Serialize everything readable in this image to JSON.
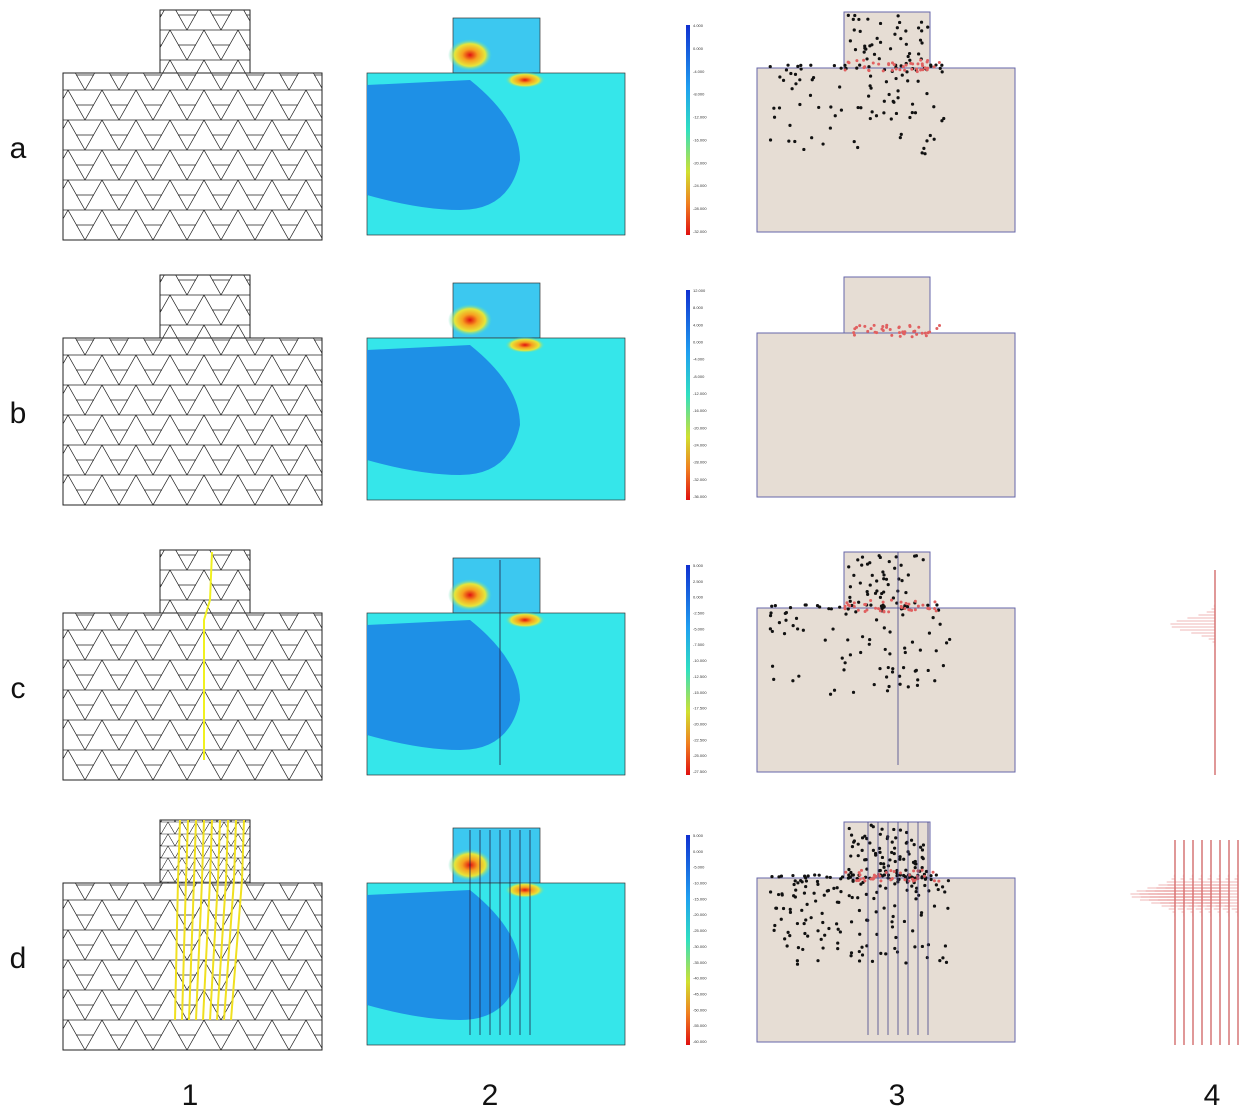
{
  "rows": [
    {
      "label": "a",
      "colorbar": [
        "4.000",
        "0.000",
        "-4.000",
        "-8.000",
        "-12.000",
        "-16.000",
        "-20.000",
        "-24.000",
        "-28.000",
        "-32.000"
      ]
    },
    {
      "label": "b",
      "colorbar": [
        "12.000",
        "8.000",
        "4.000",
        "0.000",
        "-4.000",
        "-8.000",
        "-12.000",
        "-16.000",
        "-20.000",
        "-24.000",
        "-28.000",
        "-32.000",
        "-36.000"
      ]
    },
    {
      "label": "c",
      "colorbar": [
        "5.000",
        "2.500",
        "0.000",
        "-2.500",
        "-5.000",
        "-7.500",
        "-10.000",
        "-12.500",
        "-15.000",
        "-17.500",
        "-20.000",
        "-22.500",
        "-25.000",
        "-27.500"
      ]
    },
    {
      "label": "d",
      "colorbar": [
        "5.000",
        "0.000",
        "-5.000",
        "-10.000",
        "-15.000",
        "-20.000",
        "-25.000",
        "-30.000",
        "-35.000",
        "-40.000",
        "-45.000",
        "-50.000",
        "-55.000",
        "-60.000"
      ]
    }
  ],
  "columns": [
    "1",
    "2",
    "3",
    "4"
  ]
}
